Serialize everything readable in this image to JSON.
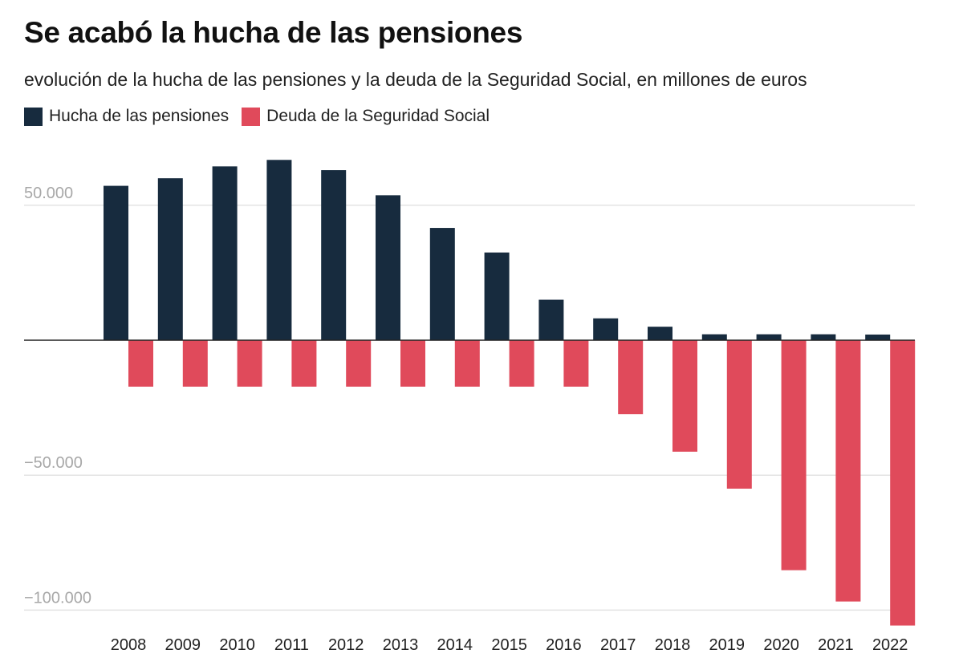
{
  "chart_data": {
    "type": "bar",
    "title": "Se acabó la hucha de las pensiones",
    "subtitle": "evolución de la hucha de las pensiones y la deuda de la Seguridad Social, en millones de euros",
    "categories": [
      "2008",
      "2009",
      "2010",
      "2011",
      "2012",
      "2013",
      "2014",
      "2015",
      "2016",
      "2017",
      "2018",
      "2019",
      "2020",
      "2021",
      "2022"
    ],
    "series": [
      {
        "name": "Hucha de las pensiones",
        "color": "#172b3e",
        "values": [
          57200,
          60000,
          64400,
          66800,
          63000,
          53700,
          41600,
          32500,
          15000,
          8100,
          5000,
          2200,
          2200,
          2200,
          2100
        ]
      },
      {
        "name": "Deuda de la Seguridad Social",
        "color": "#e04a5b",
        "values": [
          -17200,
          -17200,
          -17200,
          -17200,
          -17200,
          -17200,
          -17200,
          -17200,
          -17200,
          -27400,
          -41300,
          -55000,
          -85200,
          -96800,
          -105700
        ]
      }
    ],
    "y_ticks": [
      {
        "value": 50000,
        "label": "50.000"
      },
      {
        "value": -50000,
        "label": "−50.000"
      },
      {
        "value": -100000,
        "label": "−100.000"
      }
    ],
    "ylim": [
      -107000,
      75000
    ],
    "grid": true,
    "legend": "top-left"
  }
}
